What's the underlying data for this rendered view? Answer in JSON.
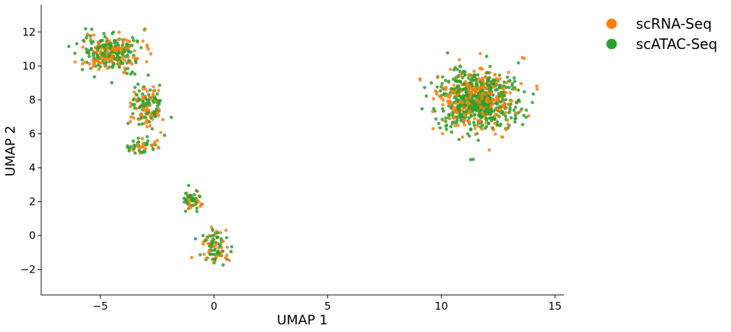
{
  "chart_data": {
    "type": "scatter",
    "title": "",
    "xlabel": "UMAP 1",
    "ylabel": "UMAP 2",
    "xlim": [
      -7.6,
      15.4
    ],
    "ylim": [
      -3.5,
      13.6
    ],
    "xticks": [
      -5,
      0,
      5,
      10,
      15
    ],
    "yticks": [
      -2,
      0,
      2,
      4,
      6,
      8,
      10,
      12
    ],
    "xtick_labels": [
      "−5",
      "0",
      "5",
      "10",
      "15"
    ],
    "ytick_labels": [
      "−2",
      "0",
      "2",
      "4",
      "6",
      "8",
      "10",
      "12"
    ],
    "grid": false,
    "legend_position": "outside-top-right",
    "series": [
      {
        "name": "scRNA-Seq",
        "color": "#ff7f0e",
        "clusters": [
          {
            "center": [
              -4.5,
              10.8
            ],
            "spread": [
              1.2,
              1.0
            ],
            "count": 130
          },
          {
            "center": [
              -3.0,
              7.6
            ],
            "spread": [
              0.7,
              1.2
            ],
            "count": 60
          },
          {
            "center": [
              -3.2,
              5.3
            ],
            "spread": [
              0.6,
              0.4
            ],
            "count": 20
          },
          {
            "center": [
              -1.0,
              2.0
            ],
            "spread": [
              0.4,
              0.6
            ],
            "count": 22
          },
          {
            "center": [
              0.0,
              -0.7
            ],
            "spread": [
              0.5,
              1.0
            ],
            "count": 40
          },
          {
            "center": [
              11.6,
              8.0
            ],
            "spread": [
              1.5,
              1.6
            ],
            "count": 320
          }
        ]
      },
      {
        "name": "scATAC-Seq",
        "color": "#2ca02c",
        "clusters": [
          {
            "center": [
              -4.5,
              10.8
            ],
            "spread": [
              1.2,
              1.0
            ],
            "count": 180
          },
          {
            "center": [
              -3.0,
              7.6
            ],
            "spread": [
              0.7,
              1.2
            ],
            "count": 80
          },
          {
            "center": [
              -3.2,
              5.3
            ],
            "spread": [
              0.6,
              0.4
            ],
            "count": 30
          },
          {
            "center": [
              -1.0,
              2.0
            ],
            "spread": [
              0.4,
              0.6
            ],
            "count": 30
          },
          {
            "center": [
              0.0,
              -0.7
            ],
            "spread": [
              0.5,
              1.0
            ],
            "count": 55
          },
          {
            "center": [
              11.6,
              8.0
            ],
            "spread": [
              1.5,
              1.6
            ],
            "count": 520
          }
        ]
      }
    ]
  }
}
